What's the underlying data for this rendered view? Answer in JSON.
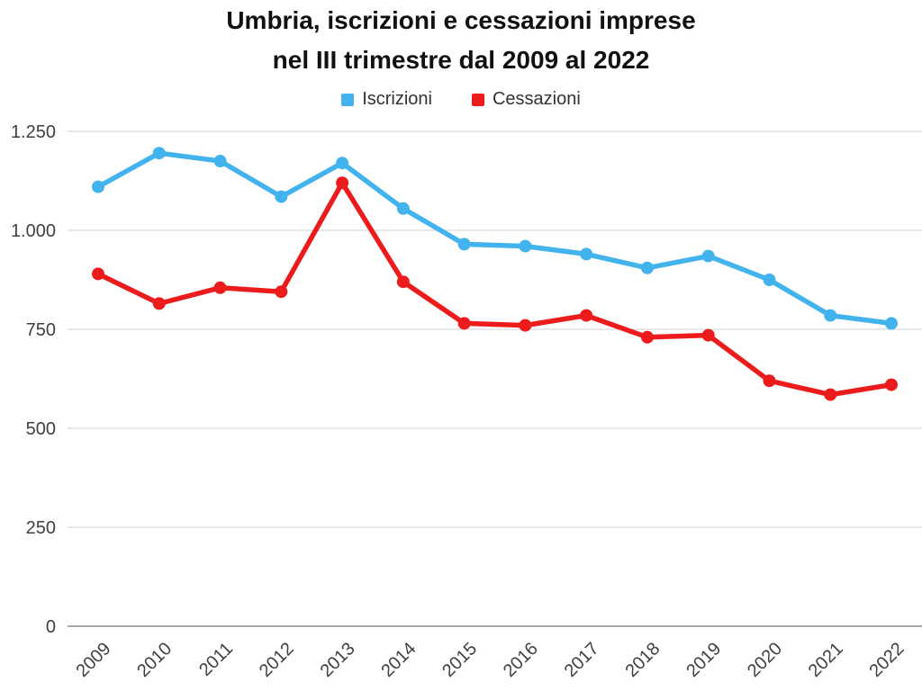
{
  "title": {
    "line1": "Umbria, iscrizioni e cessazioni imprese",
    "line2": "nel III trimestre dal 2009 al 2022"
  },
  "legend": {
    "items": [
      {
        "label": "Iscrizioni",
        "color": "#42b3ec"
      },
      {
        "label": "Cessazioni",
        "color": "#ed1c1c"
      }
    ]
  },
  "chart_data": {
    "type": "line",
    "title": "Umbria, iscrizioni e cessazioni imprese nel III trimestre dal 2009 al 2022",
    "categories": [
      "2009",
      "2010",
      "2011",
      "2012",
      "2013",
      "2014",
      "2015",
      "2016",
      "2017",
      "2018",
      "2019",
      "2020",
      "2021",
      "2022"
    ],
    "series": [
      {
        "name": "Iscrizioni",
        "color": "#42b3ec",
        "values": [
          1110,
          1195,
          1175,
          1085,
          1170,
          1055,
          965,
          960,
          940,
          905,
          935,
          875,
          785,
          765
        ]
      },
      {
        "name": "Cessazioni",
        "color": "#ed1c1c",
        "values": [
          890,
          815,
          855,
          845,
          1120,
          870,
          765,
          760,
          785,
          730,
          735,
          620,
          585,
          610
        ]
      }
    ],
    "xlabel": "",
    "ylabel": "",
    "ylim": [
      0,
      1250
    ],
    "y_ticks": [
      0,
      250,
      500,
      750,
      1000,
      1250
    ],
    "y_tick_labels": [
      "0",
      "250",
      "500",
      "750",
      "1.000",
      "1.250"
    ],
    "x_label_rotation": -45,
    "grid": true,
    "legend_position": "top"
  },
  "colors": {
    "background": "#ffffff",
    "grid": "#d9d9d9",
    "axis_line": "#8c8c8c",
    "tick_text": "#404040",
    "title_text": "#111111",
    "legend_text": "#333333"
  }
}
